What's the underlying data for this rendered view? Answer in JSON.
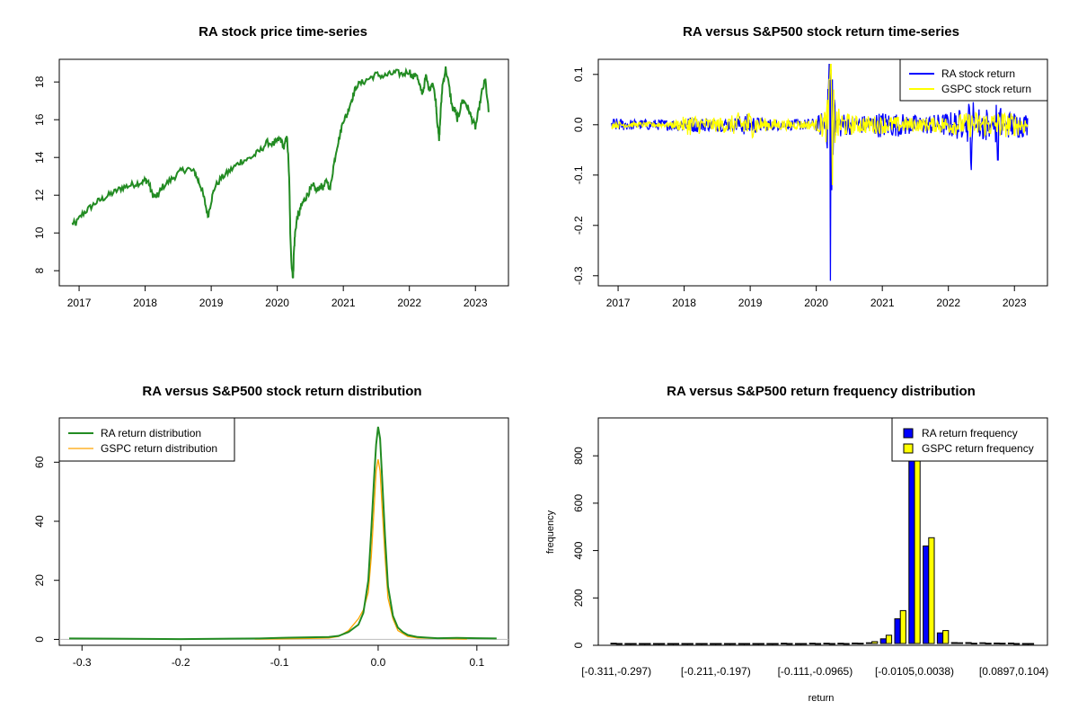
{
  "colors": {
    "ra_price": "#228B22",
    "ra_return": "#0000FF",
    "gspc_return": "#FFFF00",
    "ra_density": "#228B22",
    "gspc_density": "#FFA500",
    "ra_freq": "#0000FF",
    "gspc_freq": "#FFFF00"
  },
  "chart_data": [
    {
      "type": "line",
      "title": "RA stock price time-series",
      "xlabel": "",
      "ylabel": "",
      "xlim": [
        2016.7,
        2023.5
      ],
      "ylim": [
        7.2,
        19.2
      ],
      "x_ticks": [
        "2017",
        "2018",
        "2019",
        "2020",
        "2021",
        "2022",
        "2023"
      ],
      "x_tick_values": [
        2017,
        2018,
        2019,
        2020,
        2021,
        2022,
        2023
      ],
      "y_ticks": [
        "8",
        "10",
        "12",
        "14",
        "16",
        "18"
      ],
      "y_tick_values": [
        8,
        10,
        12,
        14,
        16,
        18
      ],
      "series": [
        {
          "name": "RA price",
          "color_key": "ra_price",
          "x": [
            2016.9,
            2016.95,
            2017.05,
            2017.15,
            2017.25,
            2017.35,
            2017.45,
            2017.55,
            2017.65,
            2017.75,
            2017.85,
            2017.95,
            2018.0,
            2018.05,
            2018.1,
            2018.15,
            2018.2,
            2018.25,
            2018.35,
            2018.45,
            2018.55,
            2018.65,
            2018.75,
            2018.8,
            2018.85,
            2018.9,
            2018.95,
            2019.0,
            2019.05,
            2019.15,
            2019.25,
            2019.35,
            2019.45,
            2019.55,
            2019.65,
            2019.75,
            2019.85,
            2019.95,
            2020.0,
            2020.05,
            2020.1,
            2020.15,
            2020.18,
            2020.2,
            2020.22,
            2020.24,
            2020.25,
            2020.27,
            2020.3,
            2020.33,
            2020.36,
            2020.4,
            2020.45,
            2020.5,
            2020.55,
            2020.6,
            2020.65,
            2020.7,
            2020.75,
            2020.8,
            2020.85,
            2020.9,
            2020.95,
            2021.0,
            2021.05,
            2021.1,
            2021.15,
            2021.2,
            2021.3,
            2021.4,
            2021.5,
            2021.6,
            2021.7,
            2021.8,
            2021.9,
            2022.0,
            2022.05,
            2022.1,
            2022.15,
            2022.2,
            2022.25,
            2022.3,
            2022.35,
            2022.4,
            2022.42,
            2022.45,
            2022.47,
            2022.5,
            2022.55,
            2022.6,
            2022.65,
            2022.7,
            2022.72,
            2022.75,
            2022.8,
            2022.85,
            2022.9,
            2022.95,
            2023.0,
            2023.05,
            2023.1,
            2023.15,
            2023.2
          ],
          "y": [
            10.5,
            10.5,
            11.0,
            11.3,
            11.6,
            11.8,
            12.0,
            12.2,
            12.4,
            12.5,
            12.6,
            12.7,
            12.8,
            12.7,
            12.1,
            11.9,
            12.0,
            12.4,
            12.7,
            13.0,
            13.3,
            13.4,
            13.2,
            12.8,
            12.4,
            11.7,
            10.9,
            11.7,
            12.4,
            12.9,
            13.2,
            13.5,
            13.8,
            13.9,
            14.1,
            14.4,
            14.8,
            14.7,
            14.9,
            15.0,
            14.5,
            15.1,
            13.0,
            9.5,
            8.2,
            7.6,
            8.9,
            10.0,
            10.8,
            11.0,
            11.4,
            11.7,
            12.0,
            12.3,
            12.5,
            12.2,
            12.5,
            12.4,
            12.8,
            12.3,
            13.5,
            14.5,
            15.2,
            16.0,
            16.2,
            16.8,
            17.3,
            17.8,
            18.0,
            18.2,
            18.4,
            18.3,
            18.4,
            18.5,
            18.4,
            18.6,
            18.2,
            18.5,
            17.8,
            17.4,
            18.3,
            17.6,
            18.0,
            17.0,
            16.0,
            14.9,
            16.2,
            17.8,
            18.7,
            17.8,
            16.6,
            16.5,
            16.0,
            16.3,
            17.0,
            16.9,
            16.5,
            16.0,
            15.6,
            16.5,
            17.5,
            18.1,
            16.4
          ]
        }
      ]
    },
    {
      "type": "line",
      "title": "RA versus S&P500 stock return time-series",
      "xlabel": "",
      "ylabel": "",
      "xlim": [
        2016.7,
        2023.5
      ],
      "ylim": [
        -0.32,
        0.13
      ],
      "x_ticks": [
        "2017",
        "2018",
        "2019",
        "2020",
        "2021",
        "2022",
        "2023"
      ],
      "x_tick_values": [
        2017,
        2018,
        2019,
        2020,
        2021,
        2022,
        2023
      ],
      "y_ticks": [
        "-0.3",
        "-0.2",
        "-0.1",
        "0.0",
        "0.1"
      ],
      "y_tick_values": [
        -0.3,
        -0.2,
        -0.1,
        0.0,
        0.1
      ],
      "legend": [
        "RA stock return",
        "GSPC stock return"
      ],
      "legend_position": "top-right",
      "series": [
        {
          "name": "RA stock return",
          "color_key": "ra_return",
          "x": [
            2016.9,
            2017.2,
            2017.5,
            2017.8,
            2018.1,
            2018.4,
            2018.7,
            2018.95,
            2019.2,
            2019.5,
            2019.8,
            2020.0,
            2020.15,
            2020.18,
            2020.2,
            2020.21,
            2020.22,
            2020.23,
            2020.24,
            2020.25,
            2020.27,
            2020.3,
            2020.35,
            2020.45,
            2020.6,
            2020.8,
            2021.0,
            2021.3,
            2021.6,
            2021.9,
            2022.2,
            2022.35,
            2022.45,
            2022.6,
            2022.75,
            2022.9,
            2023.05,
            2023.2
          ],
          "envelope": [
            0.015,
            0.012,
            0.012,
            0.012,
            0.018,
            0.014,
            0.015,
            0.025,
            0.014,
            0.012,
            0.012,
            0.015,
            0.04,
            0.07,
            0.12,
            -0.31,
            0.11,
            -0.13,
            0.09,
            -0.06,
            0.05,
            0.035,
            0.03,
            0.025,
            0.02,
            0.022,
            0.03,
            0.025,
            0.02,
            0.025,
            0.035,
            -0.09,
            0.04,
            0.04,
            -0.07,
            0.03,
            0.03,
            0.025
          ]
        },
        {
          "name": "GSPC stock return",
          "color_key": "gspc_return",
          "x": [
            2016.9,
            2017.2,
            2017.5,
            2017.8,
            2018.1,
            2018.4,
            2018.7,
            2018.95,
            2019.2,
            2019.5,
            2019.8,
            2020.0,
            2020.15,
            2020.2,
            2020.22,
            2020.24,
            2020.26,
            2020.3,
            2020.4,
            2020.6,
            2020.8,
            2021.0,
            2021.3,
            2021.6,
            2021.9,
            2022.2,
            2022.4,
            2022.6,
            2022.8,
            2023.0,
            2023.2
          ],
          "envelope": [
            0.008,
            0.006,
            0.006,
            0.006,
            0.025,
            0.015,
            0.02,
            0.035,
            0.015,
            0.012,
            0.01,
            0.012,
            0.04,
            0.09,
            0.12,
            -0.12,
            0.07,
            0.04,
            0.03,
            0.02,
            0.02,
            0.02,
            0.018,
            0.015,
            0.018,
            0.025,
            0.03,
            0.028,
            0.03,
            0.025,
            0.02
          ]
        }
      ]
    },
    {
      "type": "line",
      "title": "RA versus S&P500 stock return distribution",
      "xlabel": "",
      "ylabel": "",
      "xlim": [
        -0.323,
        0.132
      ],
      "ylim": [
        -2,
        75
      ],
      "x_ticks": [
        "-0.3",
        "-0.2",
        "-0.1",
        "0.0",
        "0.1"
      ],
      "x_tick_values": [
        -0.3,
        -0.2,
        -0.1,
        0.0,
        0.1
      ],
      "y_ticks": [
        "0",
        "20",
        "40",
        "60"
      ],
      "y_tick_values": [
        0,
        20,
        40,
        60
      ],
      "legend": [
        "RA return distribution",
        "GSPC return distribution"
      ],
      "legend_position": "top-left",
      "series": [
        {
          "name": "RA return distribution",
          "color_key": "ra_density",
          "x": [
            -0.313,
            -0.2,
            -0.12,
            -0.1,
            -0.09,
            -0.07,
            -0.05,
            -0.04,
            -0.03,
            -0.02,
            -0.015,
            -0.01,
            -0.007,
            -0.004,
            -0.002,
            0.0,
            0.002,
            0.004,
            0.007,
            0.01,
            0.015,
            0.02,
            0.025,
            0.03,
            0.04,
            0.05,
            0.06,
            0.08,
            0.1,
            0.12
          ],
          "y": [
            0.3,
            0.1,
            0.3,
            0.5,
            0.6,
            0.7,
            0.8,
            1.2,
            2.5,
            5,
            9,
            20,
            37,
            55,
            66,
            72,
            68,
            55,
            35,
            18,
            8,
            4,
            2.5,
            1.5,
            0.8,
            0.6,
            0.4,
            0.5,
            0.4,
            0.3
          ]
        },
        {
          "name": "GSPC return distribution",
          "color_key": "gspc_density",
          "x": [
            -0.125,
            -0.1,
            -0.07,
            -0.05,
            -0.04,
            -0.03,
            -0.02,
            -0.015,
            -0.01,
            -0.007,
            -0.004,
            -0.002,
            0.0,
            0.002,
            0.004,
            0.007,
            0.01,
            0.015,
            0.02,
            0.03,
            0.04,
            0.06,
            0.09
          ],
          "y": [
            0.1,
            0.2,
            0.3,
            0.5,
            1,
            3,
            7,
            10,
            16,
            28,
            45,
            57,
            61,
            57,
            45,
            28,
            14,
            7,
            3,
            1,
            0.5,
            0.3,
            0.1
          ]
        }
      ]
    },
    {
      "type": "bar",
      "title": "RA versus S&P500 return frequency distribution",
      "xlabel": "return",
      "ylabel": "frequency",
      "ylim": [
        0,
        960
      ],
      "y_ticks": [
        "0",
        "200",
        "400",
        "600",
        "800"
      ],
      "y_tick_values": [
        0,
        200,
        400,
        600,
        800
      ],
      "x_tick_labels": [
        "[-0.311,-0.297)",
        "[-0.211,-0.197)",
        "[-0.111,-0.0965)",
        "[-0.0105,0.0038)",
        "[0.0897,0.104)"
      ],
      "x_tick_bins": [
        0,
        7,
        14,
        21,
        28
      ],
      "legend": [
        "RA return frequency",
        "GSPC return frequency"
      ],
      "legend_position": "top-right",
      "series": [
        {
          "name": "RA return frequency",
          "color_key": "ra_freq",
          "values": [
            1,
            0,
            0,
            0,
            0,
            0,
            0,
            0,
            0,
            0,
            0,
            0,
            1,
            0,
            1,
            1,
            1,
            2,
            3,
            20,
            105,
            950,
            415,
            45,
            4,
            4,
            3,
            2,
            2,
            0
          ]
        },
        {
          "name": "GSPC return frequency",
          "color_key": "gspc_freq",
          "values": [
            0,
            0,
            0,
            0,
            0,
            0,
            0,
            0,
            0,
            0,
            0,
            0,
            0,
            0,
            0,
            0,
            0,
            1,
            8,
            35,
            140,
            870,
            450,
            55,
            3,
            1,
            1,
            1,
            0,
            0
          ]
        }
      ]
    }
  ]
}
